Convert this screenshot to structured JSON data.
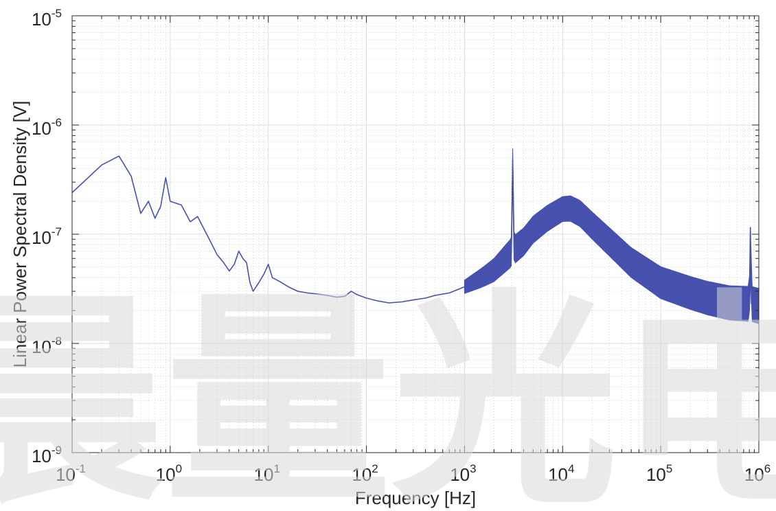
{
  "chart_data": {
    "type": "line",
    "title": "",
    "xlabel": "Frequency [Hz]",
    "ylabel": "Linear Power Spectral Density [V]",
    "xscale": "log",
    "yscale": "log",
    "xlim": [
      0.1,
      1000000
    ],
    "ylim": [
      1e-09,
      1e-05
    ],
    "grid": "on (major and minor)",
    "x_ticks": [
      {
        "value": 0.1,
        "base": "10",
        "exp": "-1"
      },
      {
        "value": 1,
        "base": "10",
        "exp": "0"
      },
      {
        "value": 10,
        "base": "10",
        "exp": "1"
      },
      {
        "value": 100,
        "base": "10",
        "exp": "2"
      },
      {
        "value": 1000,
        "base": "10",
        "exp": "3"
      },
      {
        "value": 10000,
        "base": "10",
        "exp": "4"
      },
      {
        "value": 100000,
        "base": "10",
        "exp": "5"
      },
      {
        "value": 1000000,
        "base": "10",
        "exp": "6"
      }
    ],
    "y_ticks": [
      {
        "value": 1e-09,
        "base": "10",
        "exp": "-9"
      },
      {
        "value": 1e-08,
        "base": "10",
        "exp": "-8"
      },
      {
        "value": 1e-07,
        "base": "10",
        "exp": "-7"
      },
      {
        "value": 1e-06,
        "base": "10",
        "exp": "-6"
      },
      {
        "value": 1e-05,
        "base": "10",
        "exp": "-5"
      }
    ],
    "series": [
      {
        "color": "#4650ad",
        "points": [
          [
            0.1,
            2.4e-07
          ],
          [
            0.2,
            4.3e-07
          ],
          [
            0.3,
            5.2e-07
          ],
          [
            0.4,
            3.4e-07
          ],
          [
            0.5,
            1.55e-07
          ],
          [
            0.6,
            2e-07
          ],
          [
            0.7,
            1.4e-07
          ],
          [
            0.8,
            1.8e-07
          ],
          [
            0.9,
            3.3e-07
          ],
          [
            1.0,
            2e-07
          ],
          [
            1.3,
            1.85e-07
          ],
          [
            1.6,
            1.3e-07
          ],
          [
            1.9,
            1.45e-07
          ],
          [
            2.5,
            9e-08
          ],
          [
            3.0,
            6.5e-08
          ],
          [
            3.5,
            5.5e-08
          ],
          [
            4.0,
            4.6e-08
          ],
          [
            4.5,
            5.3e-08
          ],
          [
            5.0,
            7e-08
          ],
          [
            5.5,
            6e-08
          ],
          [
            6.0,
            5.5e-08
          ],
          [
            6.5,
            3.6e-08
          ],
          [
            7.0,
            3e-08
          ],
          [
            8.0,
            3.6e-08
          ],
          [
            9.0,
            4.3e-08
          ],
          [
            10,
            5.3e-08
          ],
          [
            11,
            4e-08
          ],
          [
            13,
            3.7e-08
          ],
          [
            16,
            3.3e-08
          ],
          [
            20,
            3e-08
          ],
          [
            25,
            2.9e-08
          ],
          [
            30,
            2.85e-08
          ],
          [
            40,
            2.75e-08
          ],
          [
            50,
            2.65e-08
          ],
          [
            60,
            2.7e-08
          ],
          [
            70,
            3e-08
          ],
          [
            80,
            2.8e-08
          ],
          [
            100,
            2.6e-08
          ],
          [
            130,
            2.45e-08
          ],
          [
            170,
            2.35e-08
          ],
          [
            230,
            2.4e-08
          ],
          [
            300,
            2.5e-08
          ],
          [
            400,
            2.6e-08
          ],
          [
            500,
            2.75e-08
          ],
          [
            700,
            2.9e-08
          ],
          [
            1000,
            3.3e-08
          ],
          [
            1500,
            4e-08
          ],
          [
            2000,
            4.7e-08
          ],
          [
            3000,
            6.8e-08
          ],
          [
            3100,
            4.8e-07
          ],
          [
            3200,
            7.2e-08
          ],
          [
            4000,
            8.5e-08
          ],
          [
            5000,
            1.1e-07
          ],
          [
            7000,
            1.4e-07
          ],
          [
            10000,
            1.7e-07
          ],
          [
            12000,
            1.72e-07
          ],
          [
            15000,
            1.55e-07
          ],
          [
            20000,
            1.2e-07
          ],
          [
            30000,
            8.5e-08
          ],
          [
            50000,
            5.5e-08
          ],
          [
            100000,
            3.6e-08
          ],
          [
            200000,
            2.9e-08
          ],
          [
            300000,
            2.6e-08
          ],
          [
            500000,
            2.35e-08
          ],
          [
            800000,
            2.3e-08
          ],
          [
            820000,
            1.15e-07
          ],
          [
            840000,
            2.3e-08
          ],
          [
            1000000,
            2.2e-08
          ]
        ]
      }
    ],
    "noise_band_ratio": [
      [
        1000,
        1.15
      ],
      [
        3000,
        1.35
      ],
      [
        10000,
        1.3
      ],
      [
        100000,
        1.4
      ],
      [
        1000000,
        1.45
      ]
    ],
    "watermark_text": "晨量光电"
  }
}
